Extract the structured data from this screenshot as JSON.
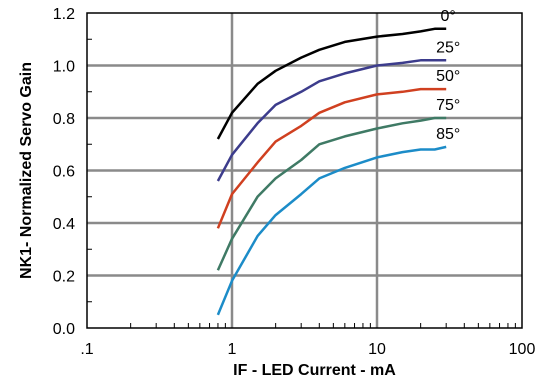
{
  "chart_data": {
    "type": "line",
    "title": "",
    "xlabel": "IF - LED Current - mA",
    "ylabel": "NK1- Normalized Servo Gain",
    "x_scale": "log",
    "xlim": [
      0.1,
      100
    ],
    "ylim": [
      0.0,
      1.2
    ],
    "x_ticks": [
      {
        "value": 0.1,
        "label": ".1"
      },
      {
        "value": 1,
        "label": "1"
      },
      {
        "value": 10,
        "label": "10"
      },
      {
        "value": 100,
        "label": "100"
      }
    ],
    "y_ticks": [
      {
        "value": 0.0,
        "label": "0.0"
      },
      {
        "value": 0.2,
        "label": "0.2"
      },
      {
        "value": 0.4,
        "label": "0.4"
      },
      {
        "value": 0.6,
        "label": "0.6"
      },
      {
        "value": 0.8,
        "label": "0.8"
      },
      {
        "value": 1.0,
        "label": "1.0"
      },
      {
        "value": 1.2,
        "label": "1.2"
      }
    ],
    "grid": true,
    "legend": "inline labels at right end of each curve",
    "series": [
      {
        "name": "0°",
        "color": "#000000",
        "x": [
          0.8,
          1.0,
          1.5,
          2.0,
          3.0,
          4.0,
          6.0,
          10.0,
          15.0,
          20.0,
          25.0,
          30.0
        ],
        "y": [
          0.72,
          0.82,
          0.93,
          0.98,
          1.03,
          1.06,
          1.09,
          1.11,
          1.12,
          1.13,
          1.14,
          1.14
        ]
      },
      {
        "name": "25°",
        "color": "#3c3c8c",
        "x": [
          0.8,
          1.0,
          1.5,
          2.0,
          3.0,
          4.0,
          6.0,
          10.0,
          15.0,
          20.0,
          25.0,
          30.0
        ],
        "y": [
          0.56,
          0.66,
          0.78,
          0.85,
          0.9,
          0.94,
          0.97,
          1.0,
          1.01,
          1.02,
          1.02,
          1.02
        ]
      },
      {
        "name": "50°",
        "color": "#d04020",
        "x": [
          0.8,
          1.0,
          1.5,
          2.0,
          3.0,
          4.0,
          6.0,
          10.0,
          15.0,
          20.0,
          25.0,
          30.0
        ],
        "y": [
          0.38,
          0.51,
          0.63,
          0.71,
          0.77,
          0.82,
          0.86,
          0.89,
          0.9,
          0.91,
          0.91,
          0.91
        ]
      },
      {
        "name": "75°",
        "color": "#3f7a65",
        "x": [
          0.8,
          1.0,
          1.5,
          2.0,
          3.0,
          4.0,
          6.0,
          10.0,
          15.0,
          20.0,
          25.0,
          30.0
        ],
        "y": [
          0.22,
          0.34,
          0.5,
          0.57,
          0.64,
          0.7,
          0.73,
          0.76,
          0.78,
          0.79,
          0.8,
          0.8
        ]
      },
      {
        "name": "85°",
        "color": "#1c8cc8",
        "x": [
          0.8,
          1.0,
          1.5,
          2.0,
          3.0,
          4.0,
          6.0,
          10.0,
          15.0,
          20.0,
          25.0,
          30.0
        ],
        "y": [
          0.05,
          0.18,
          0.35,
          0.43,
          0.51,
          0.57,
          0.61,
          0.65,
          0.67,
          0.68,
          0.68,
          0.69
        ]
      }
    ]
  }
}
